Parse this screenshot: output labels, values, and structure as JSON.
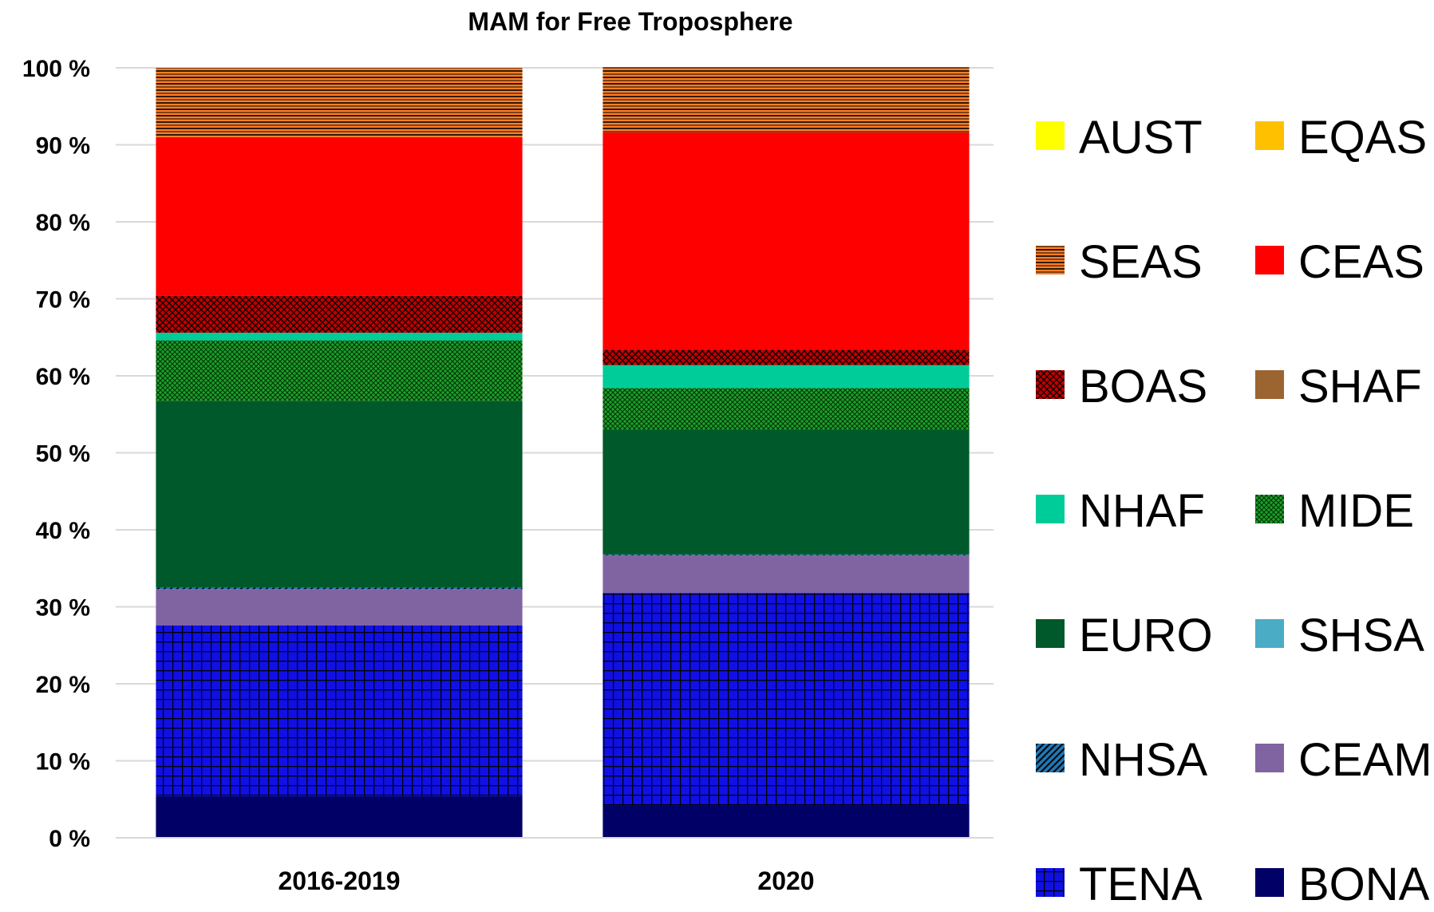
{
  "chart_data": {
    "type": "bar",
    "stacked": true,
    "percent": true,
    "title": "MAM for Free Troposphere",
    "xlabel": "",
    "ylabel": "",
    "ylim": [
      0,
      100
    ],
    "yticks": [
      "0 %",
      "10 %",
      "20 %",
      "30 %",
      "40 %",
      "50 %",
      "60 %",
      "70 %",
      "80 %",
      "90 %",
      "100 %"
    ],
    "grid": true,
    "legend_position": "right",
    "categories": [
      "2016-2019",
      "2020"
    ],
    "series": [
      {
        "name": "BONA",
        "values": [
          5.4,
          4.2
        ],
        "color": "#000066",
        "pattern": "solid"
      },
      {
        "name": "TENA",
        "values": [
          22.2,
          27.6
        ],
        "color": "#1010e6",
        "pattern": "grid"
      },
      {
        "name": "CEAM",
        "values": [
          4.7,
          4.9
        ],
        "color": "#8064a2",
        "pattern": "solid"
      },
      {
        "name": "NHSA",
        "values": [
          0.2,
          0.1
        ],
        "color": "#1f77b4",
        "pattern": "diagonal"
      },
      {
        "name": "SHSA",
        "values": [
          0.0,
          0.0
        ],
        "color": "#4bacc6",
        "pattern": "solid"
      },
      {
        "name": "EURO",
        "values": [
          24.2,
          16.2
        ],
        "color": "#00592a",
        "pattern": "solid"
      },
      {
        "name": "MIDE",
        "values": [
          7.9,
          5.4
        ],
        "color": "#1e9e2e",
        "pattern": "crosshatch"
      },
      {
        "name": "NHAF",
        "values": [
          1.0,
          3.0
        ],
        "color": "#00cc99",
        "pattern": "solid"
      },
      {
        "name": "SHAF",
        "values": [
          0.0,
          0.0
        ],
        "color": "#9c6431",
        "pattern": "solid"
      },
      {
        "name": "BOAS",
        "values": [
          4.8,
          2.0
        ],
        "color": "#c00000",
        "pattern": "crosshatch"
      },
      {
        "name": "CEAS",
        "values": [
          20.6,
          28.2
        ],
        "color": "#ff0000",
        "pattern": "solid"
      },
      {
        "name": "SEAS",
        "values": [
          9.0,
          8.5
        ],
        "color": "#ff7f27",
        "pattern": "horizontal"
      },
      {
        "name": "EQAS",
        "values": [
          0.0,
          0.0
        ],
        "color": "#ffc000",
        "pattern": "solid"
      },
      {
        "name": "AUST",
        "values": [
          0.0,
          0.0
        ],
        "color": "#ffff00",
        "pattern": "solid"
      }
    ],
    "legend_order": [
      [
        "AUST",
        "EQAS"
      ],
      [
        "SEAS",
        "CEAS"
      ],
      [
        "BOAS",
        "SHAF"
      ],
      [
        "NHAF",
        "MIDE"
      ],
      [
        "EURO",
        "SHSA"
      ],
      [
        "NHSA",
        "CEAM"
      ],
      [
        "TENA",
        "BONA"
      ]
    ]
  }
}
